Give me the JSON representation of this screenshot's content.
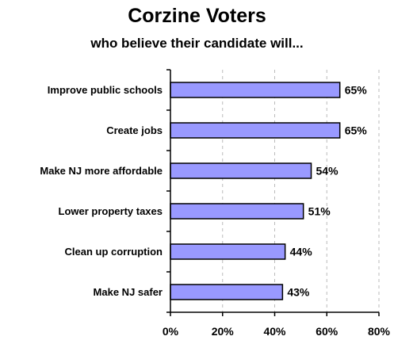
{
  "chart_data": {
    "type": "bar",
    "orientation": "horizontal",
    "title": "Corzine Voters",
    "subtitle": "who believe their candidate will...",
    "categories": [
      "Improve public schools",
      "Create jobs",
      "Make NJ more affordable",
      "Lower property taxes",
      "Clean up corruption",
      "Make NJ safer"
    ],
    "values": [
      65,
      65,
      54,
      51,
      44,
      43
    ],
    "data_labels": [
      "65%",
      "65%",
      "54%",
      "51%",
      "44%",
      "43%"
    ],
    "xlim": [
      0,
      80
    ],
    "xticks": [
      0,
      20,
      40,
      60,
      80
    ],
    "xtick_labels": [
      "0%",
      "20%",
      "40%",
      "60%",
      "80%"
    ],
    "grid": "vertical dashed",
    "colors": {
      "bar_fill": "#9999ff",
      "bar_stroke": "#000000",
      "grid": "#bbbbbb"
    }
  }
}
